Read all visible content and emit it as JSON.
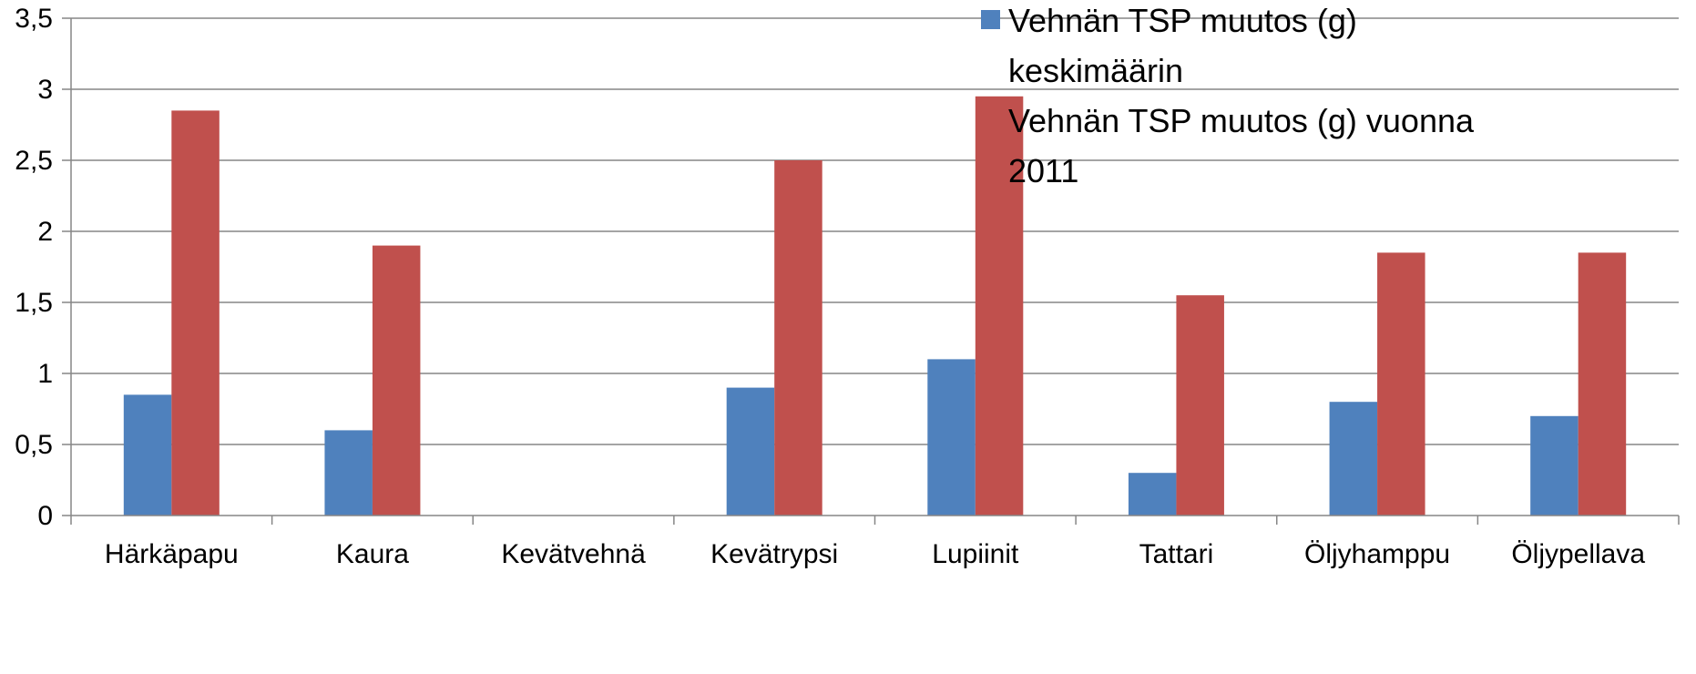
{
  "chart_data": {
    "type": "bar",
    "title": "",
    "xlabel": "",
    "ylabel": "",
    "categories": [
      "Härkäpapu",
      "Kaura",
      "Kevätvehnä",
      "Kevätrypsi",
      "Lupiinit",
      "Tattari",
      "Öljyhamppu",
      "Öljypellava"
    ],
    "series": [
      {
        "name": "Vehnän TSP muutos (g) keskimäärin",
        "legend_lines": [
          "Vehnän TSP muutos (g)",
          "keskimäärin"
        ],
        "color": "#4F81BD",
        "values": [
          0.85,
          0.6,
          0,
          0.9,
          1.1,
          0.3,
          0.8,
          0.7
        ]
      },
      {
        "name": "Vehnän TSP muutos (g) vuonna 2011",
        "legend_lines": [
          "Vehnän TSP muutos (g) vuonna",
          "2011"
        ],
        "color": "#C0504D",
        "values": [
          2.85,
          1.9,
          0,
          2.5,
          2.95,
          1.55,
          1.85,
          1.85
        ]
      }
    ],
    "ylim": [
      0,
      3.5
    ],
    "yticks": [
      0,
      0.5,
      1,
      1.5,
      2,
      2.5,
      3,
      3.5
    ],
    "ytick_labels": [
      "0",
      "0,5",
      "1",
      "1,5",
      "2",
      "2,5",
      "3",
      "3,5"
    ],
    "grid": true,
    "legend_position": "top-right",
    "colors": {
      "gridline": "#868686",
      "axis": "#868686"
    }
  }
}
